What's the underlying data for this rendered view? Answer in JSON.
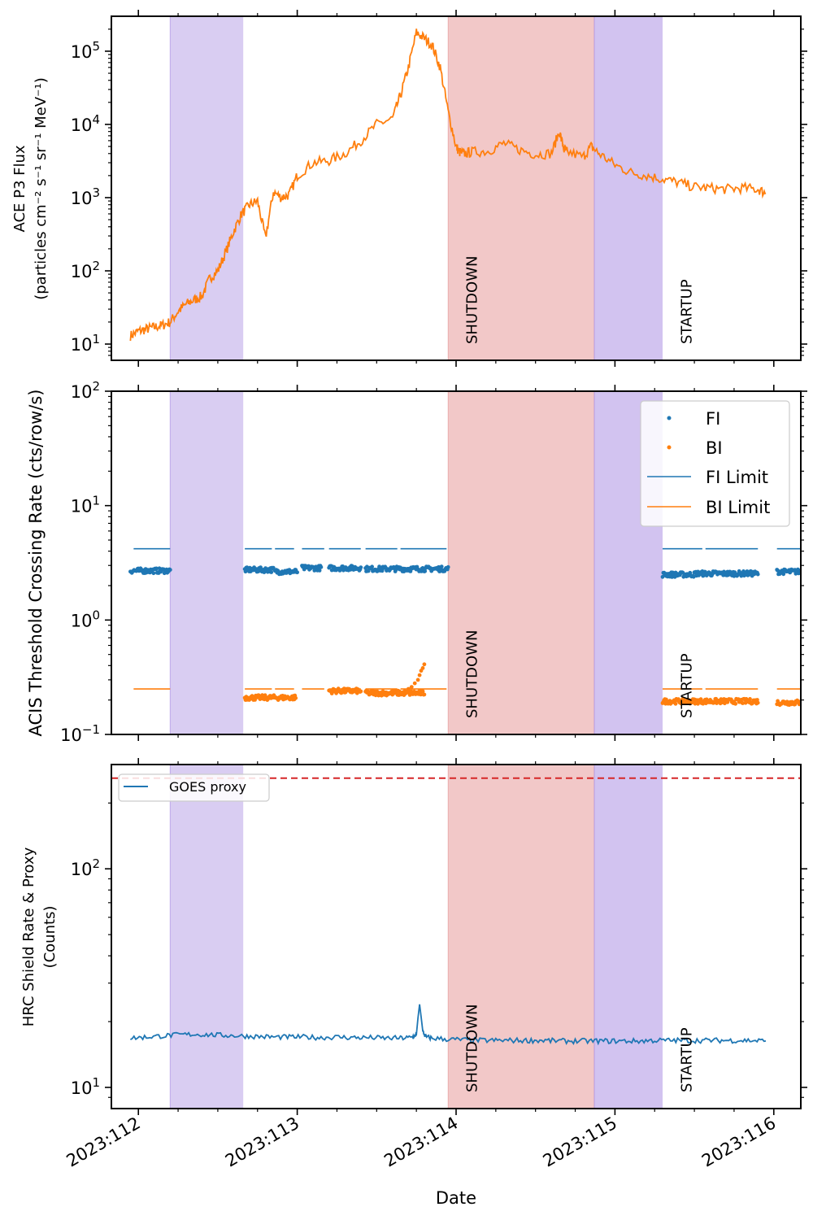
{
  "figure": {
    "xlabel": "Date",
    "date_ticks": [
      "2023:112",
      "2023:113",
      "2023:114",
      "2023:115",
      "2023:116"
    ]
  },
  "shading": [
    {
      "start": 112.2,
      "end": 112.66,
      "color": "#9370DB",
      "opacity": 0.35
    },
    {
      "start": 113.95,
      "end": 114.87,
      "color": "#E07B7B",
      "opacity": 0.42
    },
    {
      "start": 114.87,
      "end": 115.3,
      "color": "#9370DB",
      "opacity": 0.42
    }
  ],
  "annotations": {
    "shutdown": "SHUTDOWN",
    "startup": "STARTUP",
    "shutdown_x": 114.1,
    "startup_x": 115.45
  },
  "chart_data": [
    {
      "type": "line",
      "title": "",
      "ylabel_line1": "ACE P3 Flux",
      "ylabel_line2": "(particles cm⁻² s⁻¹ sr⁻¹ MeV⁻¹)",
      "yscale": "log",
      "ylim": [
        6,
        300000
      ],
      "xlim": [
        111.83,
        116.17
      ],
      "y_ticks": [
        {
          "value": 10,
          "base": "10",
          "exp": "1"
        },
        {
          "value": 100,
          "base": "10",
          "exp": "2"
        },
        {
          "value": 1000,
          "base": "10",
          "exp": "3"
        },
        {
          "value": 10000,
          "base": "10",
          "exp": "4"
        },
        {
          "value": 100000,
          "base": "10",
          "exp": "5"
        }
      ],
      "series": [
        {
          "name": "ACE P3",
          "color": "#ff7f0e",
          "x": [
            111.95,
            112.0,
            112.05,
            112.1,
            112.15,
            112.2,
            112.25,
            112.3,
            112.35,
            112.4,
            112.45,
            112.5,
            112.55,
            112.6,
            112.65,
            112.7,
            112.75,
            112.8,
            112.85,
            112.9,
            112.95,
            113.0,
            113.1,
            113.2,
            113.3,
            113.4,
            113.5,
            113.6,
            113.65,
            113.7,
            113.75,
            113.8,
            113.85,
            113.9,
            113.95,
            114.0,
            114.02,
            114.05,
            114.1,
            114.2,
            114.3,
            114.4,
            114.5,
            114.6,
            114.65,
            114.68,
            114.7,
            114.8,
            114.85,
            114.9,
            115.0,
            115.1,
            115.2,
            115.3,
            115.4,
            115.5,
            115.6,
            115.7,
            115.8,
            115.9,
            115.95
          ],
          "values": [
            13,
            15,
            16,
            17,
            18,
            20,
            28,
            35,
            40,
            45,
            80,
            100,
            180,
            350,
            600,
            800,
            900,
            280,
            1200,
            1000,
            1100,
            2000,
            3000,
            3200,
            4000,
            6000,
            10000,
            12000,
            25000,
            60000,
            180000,
            150000,
            120000,
            60000,
            15000,
            5000,
            4200,
            4000,
            4200,
            4300,
            5500,
            4500,
            3900,
            4000,
            8000,
            4500,
            4200,
            3600,
            5000,
            4000,
            2800,
            2200,
            2000,
            1800,
            1600,
            1400,
            1350,
            1300,
            1350,
            1300,
            1150
          ]
        }
      ]
    },
    {
      "type": "scatter",
      "title": "",
      "ylabel": "ACIS Threshold Crossing Rate (cts/row/s)",
      "yscale": "log",
      "ylim": [
        0.1,
        100
      ],
      "xlim": [
        111.83,
        116.17
      ],
      "y_ticks": [
        {
          "value": 0.1,
          "base": "10",
          "exp": "−1"
        },
        {
          "value": 1,
          "base": "10",
          "exp": "0"
        },
        {
          "value": 10,
          "base": "10",
          "exp": "1"
        },
        {
          "value": 100,
          "base": "10",
          "exp": "2"
        }
      ],
      "fi_color": "#1f77b4",
      "bi_color": "#ff7f0e",
      "fi_segments": [
        {
          "start": 111.95,
          "end": 112.2,
          "value": 2.7
        },
        {
          "start": 112.67,
          "end": 112.85,
          "value": 2.75
        },
        {
          "start": 112.86,
          "end": 113.0,
          "value": 2.65
        },
        {
          "start": 113.03,
          "end": 113.15,
          "value": 2.85
        },
        {
          "start": 113.2,
          "end": 113.4,
          "value": 2.85
        },
        {
          "start": 113.43,
          "end": 113.95,
          "value": 2.8
        },
        {
          "start": 115.3,
          "end": 115.5,
          "value": 2.5
        },
        {
          "start": 115.5,
          "end": 115.9,
          "value": 2.55
        },
        {
          "start": 116.02,
          "end": 116.17,
          "value": 2.65
        }
      ],
      "bi_segments": [
        {
          "start": 112.67,
          "end": 112.99,
          "value": 0.21
        },
        {
          "start": 113.2,
          "end": 113.4,
          "value": 0.24
        },
        {
          "start": 113.43,
          "end": 113.8,
          "value": 0.23
        },
        {
          "start": 115.3,
          "end": 115.9,
          "value": 0.195
        },
        {
          "start": 116.02,
          "end": 116.17,
          "value": 0.19
        }
      ],
      "bi_rise": {
        "x": [
          113.7,
          113.72,
          113.74,
          113.76,
          113.77,
          113.78,
          113.79,
          113.8
        ],
        "values": [
          0.25,
          0.26,
          0.28,
          0.3,
          0.33,
          0.36,
          0.38,
          0.41
        ]
      },
      "fi_limit": {
        "value": 4.2,
        "segments": [
          [
            111.97,
            112.2
          ],
          [
            112.67,
            112.84
          ],
          [
            112.86,
            112.98
          ],
          [
            113.03,
            113.17
          ],
          [
            113.2,
            113.4
          ],
          [
            113.43,
            113.63
          ],
          [
            113.65,
            113.94
          ],
          [
            115.3,
            115.55
          ],
          [
            115.57,
            115.9
          ],
          [
            116.02,
            116.17
          ]
        ]
      },
      "bi_limit": {
        "value": 0.25,
        "segments": [
          [
            111.97,
            112.2
          ],
          [
            112.67,
            112.84
          ],
          [
            112.86,
            112.98
          ],
          [
            113.03,
            113.17
          ],
          [
            113.2,
            113.4
          ],
          [
            113.43,
            113.63
          ],
          [
            113.65,
            113.94
          ],
          [
            115.3,
            115.55
          ],
          [
            115.57,
            115.9
          ],
          [
            116.02,
            116.17
          ]
        ]
      },
      "legend": [
        "FI",
        "BI",
        "FI Limit",
        "BI Limit"
      ],
      "legend_position": "top-right"
    },
    {
      "type": "line",
      "title": "",
      "ylabel_line1": "HRC Shield Rate & Proxy",
      "ylabel_line2": "(Counts)",
      "yscale": "log",
      "ylim": [
        8,
        300
      ],
      "xlim": [
        111.83,
        116.17
      ],
      "y_ticks": [
        {
          "value": 10,
          "base": "10",
          "exp": "1"
        },
        {
          "value": 100,
          "base": "10",
          "exp": "2"
        }
      ],
      "series": [
        {
          "name": "GOES proxy",
          "color": "#1f77b4",
          "x": [
            111.95,
            112.05,
            112.15,
            112.25,
            112.35,
            112.45,
            112.55,
            112.65,
            112.75,
            112.85,
            112.95,
            113.05,
            113.15,
            113.25,
            113.35,
            113.45,
            113.55,
            113.65,
            113.72,
            113.75,
            113.77,
            113.79,
            113.81,
            113.85,
            113.95,
            114.05,
            114.15,
            114.25,
            114.35,
            114.45,
            114.55,
            114.65,
            114.75,
            114.85,
            114.95,
            115.05,
            115.15,
            115.25,
            115.35,
            115.45,
            115.55,
            115.65,
            115.75,
            115.85,
            115.95
          ],
          "values": [
            16.8,
            17.0,
            17.2,
            17.4,
            17.5,
            17.4,
            17.3,
            17.2,
            17.1,
            17.0,
            17.0,
            17.0,
            16.9,
            17.0,
            16.9,
            16.9,
            16.8,
            16.8,
            16.9,
            17.5,
            24.0,
            18.0,
            17.0,
            16.8,
            16.6,
            16.5,
            16.4,
            16.4,
            16.4,
            16.4,
            16.4,
            16.3,
            16.3,
            16.3,
            16.3,
            16.3,
            16.3,
            16.4,
            16.4,
            16.4,
            16.4,
            16.4,
            16.4,
            16.4,
            16.3
          ]
        }
      ],
      "threshold": {
        "value": 260,
        "color": "#d62728"
      },
      "legend": [
        "GOES proxy"
      ],
      "legend_position": "top-left"
    }
  ]
}
